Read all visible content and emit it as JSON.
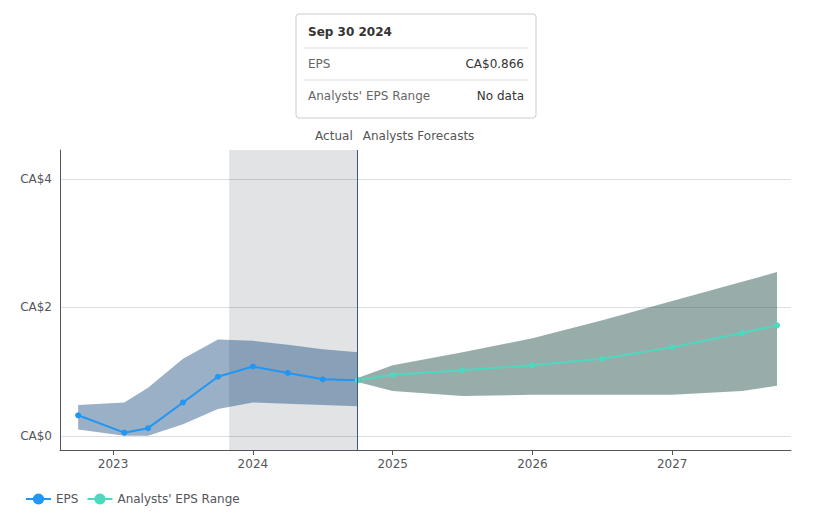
{
  "chart_data": {
    "type": "line",
    "series": [
      {
        "name": "EPS",
        "color": "#2196f3",
        "marker": "circle",
        "x": [
          2022.75,
          2023.08,
          2023.25,
          2023.5,
          2023.75,
          2024.0,
          2024.25,
          2024.5,
          2024.75
        ],
        "values": [
          0.32,
          0.05,
          0.12,
          0.52,
          0.92,
          1.08,
          0.98,
          0.88,
          0.866
        ]
      },
      {
        "name": "Analysts' EPS Range",
        "color": "#4dd9c0",
        "marker": "circle",
        "x": [
          2024.75,
          2025.0,
          2025.5,
          2026.0,
          2026.5,
          2027.0,
          2027.5,
          2027.75
        ],
        "values": [
          0.866,
          0.95,
          1.02,
          1.1,
          1.2,
          1.38,
          1.6,
          1.72
        ]
      }
    ],
    "bands": [
      {
        "color": "#1e5080",
        "x": [
          2022.75,
          2023.08,
          2023.25,
          2023.5,
          2023.75,
          2024.0,
          2024.25,
          2024.5,
          2024.75
        ],
        "lower": [
          0.1,
          0.0,
          0.0,
          0.18,
          0.42,
          0.52,
          0.5,
          0.48,
          0.46
        ],
        "upper": [
          0.48,
          0.52,
          0.75,
          1.2,
          1.5,
          1.48,
          1.42,
          1.35,
          1.3
        ]
      },
      {
        "color": "#1a4a40",
        "x": [
          2024.75,
          2025.0,
          2025.5,
          2026.0,
          2026.5,
          2027.0,
          2027.5,
          2027.75
        ],
        "lower": [
          0.84,
          0.7,
          0.62,
          0.64,
          0.64,
          0.64,
          0.7,
          0.78
        ],
        "upper": [
          0.9,
          1.1,
          1.3,
          1.52,
          1.8,
          2.1,
          2.4,
          2.55
        ]
      }
    ],
    "xlim": [
      2022.62,
      2027.85
    ],
    "xticks": [
      2023,
      2024,
      2025,
      2026,
      2027
    ],
    "ylim": [
      -0.22,
      4.45
    ],
    "yticks": [
      {
        "value": 0.0,
        "label": "CA$0"
      },
      {
        "value": 2.0,
        "label": "CA$2"
      },
      {
        "value": 4.0,
        "label": "CA$4"
      }
    ],
    "grid": true,
    "legend": "bottom-left",
    "annotations": [
      {
        "type": "span",
        "x": [
          2023.83,
          2024.75
        ],
        "color": "#0a1828"
      },
      {
        "type": "vline",
        "x": 2024.75,
        "color": "#3a5a8a"
      },
      {
        "type": "text",
        "x": 2024.75,
        "side": "left",
        "text": "Actual"
      },
      {
        "type": "text",
        "x": 2024.75,
        "side": "right",
        "text": "Analysts Forecasts"
      },
      {
        "type": "box",
        "title": "Sep 30 2024",
        "rows": [
          {
            "label": "EPS",
            "value": "CA$0.866"
          },
          {
            "label": "Analysts' EPS Range",
            "value": "No data"
          }
        ]
      }
    ]
  }
}
